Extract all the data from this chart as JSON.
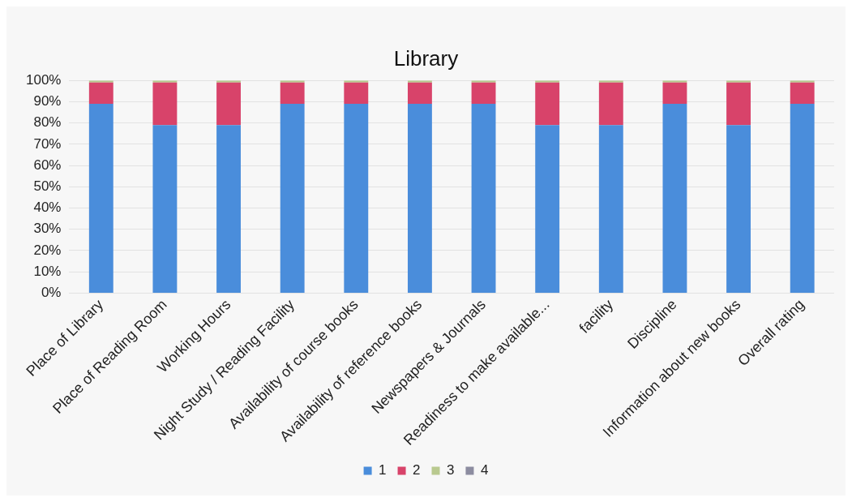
{
  "chart_data": {
    "type": "bar",
    "title": "Library",
    "categories": [
      "Place of Library",
      "Place of Reading Room",
      "Working Hours",
      "Night Study / Reading Facility",
      "Availability of course books",
      "Availability of reference books",
      "Newspapers & Journals",
      "Readiness to make available...",
      "facility",
      "Discipline",
      "Information about new books",
      "Overall rating"
    ],
    "series": [
      {
        "name": "1",
        "color": "#4a8ddb",
        "values": [
          89,
          79,
          79,
          89,
          89,
          89,
          89,
          79,
          79,
          89,
          79,
          89
        ]
      },
      {
        "name": "2",
        "color": "#d8436a",
        "values": [
          10,
          20,
          20,
          10,
          10,
          10,
          10,
          20,
          20,
          10,
          20,
          10
        ]
      },
      {
        "name": "3",
        "color": "#b9c98f",
        "values": [
          1,
          1,
          1,
          1,
          1,
          1,
          1,
          1,
          1,
          1,
          1,
          1
        ]
      },
      {
        "name": "4",
        "color": "#8c8ca0",
        "values": [
          0,
          0,
          0,
          0,
          0,
          0,
          0,
          0,
          0,
          0,
          0,
          0
        ]
      }
    ],
    "stacked": true,
    "ylim": [
      0,
      100
    ],
    "yticks": [
      {
        "value": 0,
        "label": "0%"
      },
      {
        "value": 10,
        "label": "10%"
      },
      {
        "value": 20,
        "label": "20%"
      },
      {
        "value": 30,
        "label": "30%"
      },
      {
        "value": 40,
        "label": "40%"
      },
      {
        "value": 50,
        "label": "50%"
      },
      {
        "value": 60,
        "label": "60%"
      },
      {
        "value": 70,
        "label": "70%"
      },
      {
        "value": 80,
        "label": "80%"
      },
      {
        "value": 90,
        "label": "90%"
      },
      {
        "value": 100,
        "label": "100%"
      }
    ],
    "grid": "y",
    "legend": "bottom"
  }
}
